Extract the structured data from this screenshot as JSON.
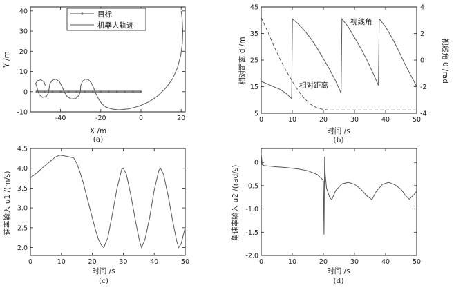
{
  "colors": {
    "line": "#555555",
    "axis": "#222222",
    "accent": "#888888"
  },
  "chart_data": [
    {
      "id": "a",
      "type": "line",
      "caption": "(a)",
      "xlabel": "X /m",
      "ylabel": "Y /m",
      "xlim": [
        -55,
        22
      ],
      "ylim": [
        -10,
        42
      ],
      "xticks": [
        -40,
        -20,
        0,
        20
      ],
      "yticks": [
        -10,
        0,
        10,
        20,
        30,
        40
      ],
      "legend": {
        "position": "top-center",
        "entries": [
          "目标",
          "机器人轨迹"
        ]
      },
      "series": [
        {
          "name": "目标",
          "marker": "dot",
          "points": [
            [
              -52,
              0
            ],
            [
              -48,
              0
            ],
            [
              -44,
              0
            ],
            [
              -40,
              0
            ],
            [
              -36,
              0
            ],
            [
              -32,
              0
            ],
            [
              -28,
              0
            ],
            [
              -24,
              0
            ],
            [
              -20,
              0
            ],
            [
              -16,
              0
            ],
            [
              -12,
              0
            ],
            [
              -8,
              0
            ],
            [
              -4,
              0
            ],
            [
              0,
              0
            ]
          ]
        },
        {
          "name": "机器人轨迹",
          "points": [
            [
              20,
              40
            ],
            [
              20.5,
              36
            ],
            [
              20.8,
              30
            ],
            [
              20.6,
              24
            ],
            [
              19.8,
              18
            ],
            [
              18.2,
              12
            ],
            [
              15.8,
              6.5
            ],
            [
              12.5,
              2
            ],
            [
              8.5,
              -2
            ],
            [
              4,
              -5
            ],
            [
              -1,
              -7.2
            ],
            [
              -6,
              -8.5
            ],
            [
              -11,
              -9
            ],
            [
              -14.5,
              -8.6
            ],
            [
              -17.5,
              -7.6
            ],
            [
              -19.5,
              -6
            ],
            [
              -21,
              -3.8
            ],
            [
              -22.4,
              -1
            ],
            [
              -23.6,
              2
            ],
            [
              -24.8,
              4.5
            ],
            [
              -26.2,
              6
            ],
            [
              -27.8,
              6.2
            ],
            [
              -29.2,
              5
            ],
            [
              -30,
              2.8
            ],
            [
              -30.1,
              0.4
            ],
            [
              -30.8,
              -1.8
            ],
            [
              -32.5,
              -3.4
            ],
            [
              -34.8,
              -3.6
            ],
            [
              -36.8,
              -2.3
            ],
            [
              -38.2,
              0
            ],
            [
              -39.4,
              2.8
            ],
            [
              -40.6,
              5
            ],
            [
              -42.3,
              6.2
            ],
            [
              -44,
              5.8
            ],
            [
              -45.3,
              4
            ],
            [
              -45.7,
              1.6
            ],
            [
              -46,
              -0.6
            ],
            [
              -47.2,
              -2.4
            ],
            [
              -49,
              -2.8
            ],
            [
              -50.5,
              -1.6
            ],
            [
              -51.3,
              0.4
            ],
            [
              -51.8,
              2.4
            ],
            [
              -52.4,
              4
            ],
            [
              -51.6,
              5.4
            ],
            [
              -49.8,
              5.9
            ],
            [
              -48.2,
              4.8
            ],
            [
              -47.6,
              3
            ]
          ]
        }
      ]
    },
    {
      "id": "b",
      "type": "line",
      "caption": "(b)",
      "xlabel": "时间 /s",
      "ylabel_left": "相对距离 d /m",
      "ylabel_right": "视线角 θ /rad",
      "xlim": [
        0,
        50
      ],
      "ylim_left": [
        5,
        45
      ],
      "ylim_right": [
        -4,
        4
      ],
      "xticks": [
        0,
        10,
        20,
        30,
        40,
        50
      ],
      "yticks_left": [
        5,
        15,
        25,
        35,
        45
      ],
      "yticks_right": [
        -4,
        -2,
        0,
        2,
        4
      ],
      "annotations": [
        "视线角",
        "相对距离"
      ],
      "series": [
        {
          "name": "相对距离",
          "axis": "left",
          "style": "dashed",
          "points": [
            [
              0,
              41
            ],
            [
              2,
              36
            ],
            [
              4,
              30.5
            ],
            [
              6,
              25.5
            ],
            [
              8,
              21
            ],
            [
              10,
              17
            ],
            [
              12,
              13.3
            ],
            [
              14,
              10.4
            ],
            [
              16,
              8.3
            ],
            [
              18,
              7
            ],
            [
              20,
              6.4
            ],
            [
              22,
              6.2
            ],
            [
              25,
              6.2
            ],
            [
              30,
              6.2
            ],
            [
              40,
              6.2
            ],
            [
              50,
              6.2
            ]
          ]
        },
        {
          "name": "视线角",
          "axis": "right",
          "points": [
            [
              0,
              -1.6
            ],
            [
              2,
              -1.8
            ],
            [
              4,
              -2
            ],
            [
              6,
              -2.2
            ],
            [
              8,
              -2.5
            ],
            [
              9.8,
              -2.9
            ],
            [
              10.05,
              3.1
            ],
            [
              12,
              2.7
            ],
            [
              14,
              2.2
            ],
            [
              16,
              1.6
            ],
            [
              18,
              0.9
            ],
            [
              20,
              0.1
            ],
            [
              22,
              -0.7
            ],
            [
              24,
              -1.6
            ],
            [
              25.7,
              -2.5
            ],
            [
              25.95,
              3.1
            ],
            [
              28,
              2.5
            ],
            [
              30,
              1.7
            ],
            [
              32,
              0.9
            ],
            [
              34,
              0
            ],
            [
              36,
              -1
            ],
            [
              37.7,
              -1.9
            ],
            [
              37.95,
              3.1
            ],
            [
              40,
              2.5
            ],
            [
              42,
              1.7
            ],
            [
              44,
              0.8
            ],
            [
              46,
              -0.2
            ],
            [
              48,
              -1.1
            ],
            [
              50,
              -2
            ]
          ]
        }
      ]
    },
    {
      "id": "c",
      "type": "line",
      "caption": "(c)",
      "xlabel": "时间 /s",
      "ylabel": "速率输入 u1 /(m/s)",
      "xlim": [
        0,
        50
      ],
      "ylim": [
        1.8,
        4.5
      ],
      "xticks": [
        0,
        10,
        20,
        30,
        40,
        50
      ],
      "yticks": [
        2.0,
        2.5,
        3.0,
        3.5,
        4.0,
        4.5
      ],
      "series": [
        {
          "name": "u1",
          "points": [
            [
              0,
              3.76
            ],
            [
              2,
              3.88
            ],
            [
              4,
              4.02
            ],
            [
              6,
              4.15
            ],
            [
              8,
              4.28
            ],
            [
              9.5,
              4.33
            ],
            [
              11,
              4.31
            ],
            [
              13,
              4.28
            ],
            [
              14,
              4.26
            ],
            [
              15,
              4.12
            ],
            [
              16,
              3.9
            ],
            [
              17,
              3.65
            ],
            [
              18,
              3.35
            ],
            [
              19,
              3.05
            ],
            [
              20,
              2.75
            ],
            [
              21,
              2.45
            ],
            [
              22,
              2.2
            ],
            [
              23,
              2.05
            ],
            [
              23.7,
              2.0
            ],
            [
              25,
              2.25
            ],
            [
              26.5,
              2.85
            ],
            [
              28,
              3.5
            ],
            [
              29.5,
              3.98
            ],
            [
              30,
              4.0
            ],
            [
              31,
              3.85
            ],
            [
              32.5,
              3.3
            ],
            [
              34,
              2.65
            ],
            [
              35.3,
              2.15
            ],
            [
              35.9,
              2.0
            ],
            [
              37,
              2.2
            ],
            [
              38.5,
              2.75
            ],
            [
              40,
              3.45
            ],
            [
              41.5,
              3.95
            ],
            [
              42,
              4.0
            ],
            [
              43,
              3.85
            ],
            [
              44.5,
              3.3
            ],
            [
              46,
              2.65
            ],
            [
              47.3,
              2.15
            ],
            [
              47.9,
              2.0
            ],
            [
              48.7,
              2.1
            ],
            [
              49.5,
              2.35
            ],
            [
              50,
              2.5
            ]
          ]
        }
      ]
    },
    {
      "id": "d",
      "type": "line",
      "caption": "(d)",
      "xlabel": "时间 /s",
      "ylabel": "角速率输入 u2 /(rad/s)",
      "xlim": [
        0,
        50
      ],
      "ylim": [
        -2.0,
        0.3
      ],
      "xticks": [
        0,
        10,
        20,
        30,
        40,
        50
      ],
      "yticks": [
        -2.0,
        -1.5,
        -1.0,
        -0.5,
        0
      ],
      "series": [
        {
          "name": "u2",
          "points": [
            [
              0,
              0.2
            ],
            [
              0.3,
              -0.05
            ],
            [
              1,
              -0.07
            ],
            [
              4,
              -0.09
            ],
            [
              8,
              -0.11
            ],
            [
              12,
              -0.14
            ],
            [
              15,
              -0.18
            ],
            [
              18,
              -0.26
            ],
            [
              19.5,
              -0.35
            ],
            [
              20,
              -0.4
            ],
            [
              20.2,
              -1.55
            ],
            [
              20.4,
              0.12
            ],
            [
              20.6,
              -0.25
            ],
            [
              21,
              -0.55
            ],
            [
              22,
              -0.75
            ],
            [
              22.7,
              -0.8
            ],
            [
              24,
              -0.6
            ],
            [
              26,
              -0.46
            ],
            [
              28,
              -0.43
            ],
            [
              30,
              -0.47
            ],
            [
              32,
              -0.57
            ],
            [
              34,
              -0.72
            ],
            [
              35.6,
              -0.8
            ],
            [
              37,
              -0.62
            ],
            [
              39,
              -0.47
            ],
            [
              41,
              -0.43
            ],
            [
              43,
              -0.48
            ],
            [
              45,
              -0.58
            ],
            [
              46.5,
              -0.72
            ],
            [
              47.6,
              -0.79
            ],
            [
              49,
              -0.7
            ],
            [
              50,
              -0.62
            ]
          ]
        }
      ]
    }
  ]
}
